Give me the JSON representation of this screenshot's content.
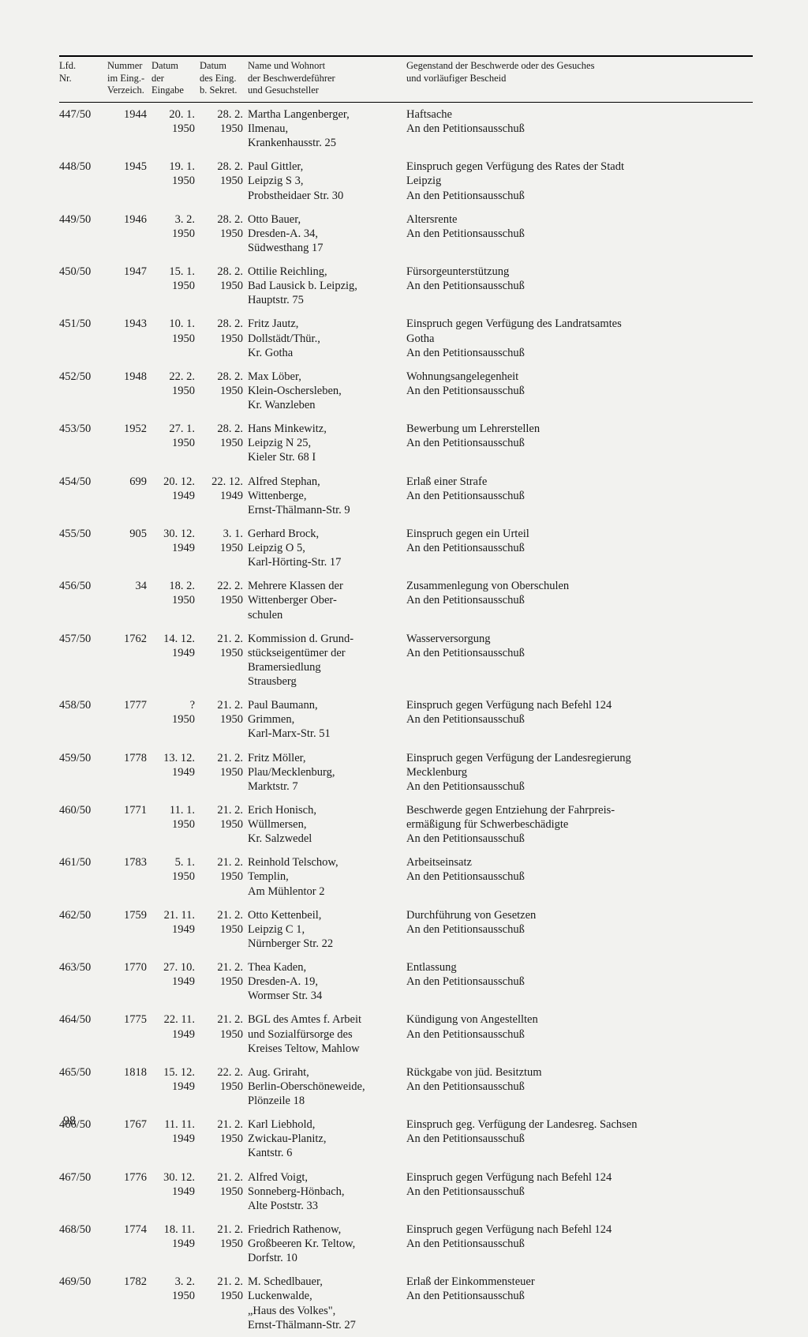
{
  "headers": {
    "lfd": "Lfd.\nNr.",
    "nummer": "Nummer\nim Eing.-\nVerzeich.",
    "datum1": "Datum\nder\nEingabe",
    "datum2": "Datum\ndes Eing.\nb. Sekret.",
    "name": "Name und Wohnort\nder Beschwerdeführer\nund Gesuchsteller",
    "gegenstand": "Gegenstand der Beschwerde oder des Gesuches\nund vorläufiger Bescheid"
  },
  "rows": [
    {
      "lfd": "447/50",
      "num": "1944",
      "d1": "20. 1.\n1950",
      "d2": "28. 2.\n1950",
      "name": "Martha Langenberger,\nIlmenau,\nKrankenhausstr. 25",
      "subj": "Haftsache\nAn den Petitionsausschuß"
    },
    {
      "lfd": "448/50",
      "num": "1945",
      "d1": "19. 1.\n1950",
      "d2": "28. 2.\n1950",
      "name": "Paul Gittler,\nLeipzig S 3,\nProbstheidaer Str. 30",
      "subj": "Einspruch gegen Verfügung des Rates der Stadt\nLeipzig\nAn den Petitionsausschuß"
    },
    {
      "lfd": "449/50",
      "num": "1946",
      "d1": "3. 2.\n1950",
      "d2": "28. 2.\n1950",
      "name": "Otto Bauer,\nDresden-A. 34,\nSüdwesthang 17",
      "subj": "Altersrente\nAn den Petitionsausschuß"
    },
    {
      "lfd": "450/50",
      "num": "1947",
      "d1": "15. 1.\n1950",
      "d2": "28. 2.\n1950",
      "name": "Ottilie Reichling,\nBad Lausick b. Leipzig,\nHauptstr. 75",
      "subj": "Fürsorgeunterstützung\nAn den Petitionsausschuß"
    },
    {
      "lfd": "451/50",
      "num": "1943",
      "d1": "10. 1.\n1950",
      "d2": "28. 2.\n1950",
      "name": "Fritz Jautz,\nDollstädt/Thür.,\nKr. Gotha",
      "subj": "Einspruch gegen Verfügung des Landratsamtes\nGotha\nAn den Petitionsausschuß"
    },
    {
      "lfd": "452/50",
      "num": "1948",
      "d1": "22. 2.\n1950",
      "d2": "28. 2.\n1950",
      "name": "Max Löber,\nKlein-Oschersleben,\nKr. Wanzleben",
      "subj": "Wohnungsangelegenheit\nAn den Petitionsausschuß"
    },
    {
      "lfd": "453/50",
      "num": "1952",
      "d1": "27. 1.\n1950",
      "d2": "28. 2.\n1950",
      "name": "Hans Minkewitz,\nLeipzig N 25,\nKieler Str. 68 I",
      "subj": "Bewerbung um Lehrerstellen\nAn den Petitionsausschuß"
    },
    {
      "lfd": "454/50",
      "num": "699",
      "d1": "20. 12.\n1949",
      "d2": "22. 12.\n1949",
      "name": "Alfred Stephan,\nWittenberge,\nErnst-Thälmann-Str. 9",
      "subj": "Erlaß einer Strafe\nAn den Petitionsausschuß"
    },
    {
      "lfd": "455/50",
      "num": "905",
      "d1": "30. 12.\n1949",
      "d2": "3. 1.\n1950",
      "name": "Gerhard Brock,\nLeipzig O 5,\nKarl-Hörting-Str. 17",
      "subj": "Einspruch gegen ein Urteil\nAn den Petitionsausschuß"
    },
    {
      "lfd": "456/50",
      "num": "34",
      "d1": "18. 2.\n1950",
      "d2": "22. 2.\n1950",
      "name": "Mehrere Klassen der\nWittenberger Ober-\nschulen",
      "subj": "Zusammenlegung von Oberschulen\nAn den Petitionsausschuß"
    },
    {
      "lfd": "457/50",
      "num": "1762",
      "d1": "14. 12.\n1949",
      "d2": "21. 2.\n1950",
      "name": "Kommission d. Grund-\nstückseigentümer der\nBramersiedlung\nStrausberg",
      "subj": "Wasserversorgung\nAn den Petitionsausschuß"
    },
    {
      "lfd": "458/50",
      "num": "1777",
      "d1": "?\n1950",
      "d2": "21. 2.\n1950",
      "name": "Paul Baumann,\nGrimmen,\nKarl-Marx-Str. 51",
      "subj": "Einspruch gegen Verfügung nach Befehl 124\nAn den Petitionsausschuß"
    },
    {
      "lfd": "459/50",
      "num": "1778",
      "d1": "13. 12.\n1949",
      "d2": "21. 2.\n1950",
      "name": "Fritz Möller,\nPlau/Mecklenburg,\nMarktstr. 7",
      "subj": "Einspruch gegen Verfügung der Landesregierung\nMecklenburg\nAn den Petitionsausschuß"
    },
    {
      "lfd": "460/50",
      "num": "1771",
      "d1": "11. 1.\n1950",
      "d2": "21. 2.\n1950",
      "name": "Erich Honisch,\nWüllmersen,\nKr. Salzwedel",
      "subj": "Beschwerde gegen Entziehung der Fahrpreis-\nermäßigung für Schwerbeschädigte\nAn den Petitionsausschuß"
    },
    {
      "lfd": "461/50",
      "num": "1783",
      "d1": "5. 1.\n1950",
      "d2": "21. 2.\n1950",
      "name": "Reinhold Telschow,\nTemplin,\nAm Mühlentor 2",
      "subj": "Arbeitseinsatz\nAn den Petitionsausschuß"
    },
    {
      "lfd": "462/50",
      "num": "1759",
      "d1": "21. 11.\n1949",
      "d2": "21. 2.\n1950",
      "name": "Otto Kettenbeil,\nLeipzig C 1,\nNürnberger Str. 22",
      "subj": "Durchführung von Gesetzen\nAn den Petitionsausschuß"
    },
    {
      "lfd": "463/50",
      "num": "1770",
      "d1": "27. 10.\n1949",
      "d2": "21. 2.\n1950",
      "name": "Thea Kaden,\nDresden-A. 19,\nWormser Str. 34",
      "subj": "Entlassung\nAn den Petitionsausschuß"
    },
    {
      "lfd": "464/50",
      "num": "1775",
      "d1": "22. 11.\n1949",
      "d2": "21. 2.\n1950",
      "name": "BGL des Amtes f. Arbeit\nund Sozialfürsorge des\nKreises Teltow, Mahlow",
      "subj": "Kündigung von Angestellten\nAn den Petitionsausschuß"
    },
    {
      "lfd": "465/50",
      "num": "1818",
      "d1": "15. 12.\n1949",
      "d2": "22. 2.\n1950",
      "name": "Aug. Griraht,\nBerlin-Oberschöneweide,\nPlönzeile 18",
      "subj": "Rückgabe von jüd. Besitztum\nAn den Petitionsausschuß"
    },
    {
      "lfd": "466/50",
      "num": "1767",
      "d1": "11. 11.\n1949",
      "d2": "21. 2.\n1950",
      "name": "Karl Liebhold,\nZwickau-Planitz,\nKantstr. 6",
      "subj": "Einspruch geg. Verfügung der Landesreg. Sachsen\nAn den Petitionsausschuß"
    },
    {
      "lfd": "467/50",
      "num": "1776",
      "d1": "30. 12.\n1949",
      "d2": "21. 2.\n1950",
      "name": "Alfred Voigt,\nSonneberg-Hönbach,\nAlte Poststr. 33",
      "subj": "Einspruch gegen Verfügung nach Befehl 124\nAn den Petitionsausschuß"
    },
    {
      "lfd": "468/50",
      "num": "1774",
      "d1": "18. 11.\n1949",
      "d2": "21. 2.\n1950",
      "name": "Friedrich Rathenow,\nGroßbeeren Kr. Teltow,\nDorfstr. 10",
      "subj": "Einspruch gegen Verfügung nach Befehl 124\nAn den Petitionsausschuß"
    },
    {
      "lfd": "469/50",
      "num": "1782",
      "d1": "3. 2.\n1950",
      "d2": "21. 2.\n1950",
      "name": "M. Schedlbauer,\nLuckenwalde,\n„Haus des Volkes\",\nErnst-Thälmann-Str. 27",
      "subj": "Erlaß der Einkommensteuer\nAn den Petitionsausschuß"
    }
  ],
  "page_number": "98"
}
